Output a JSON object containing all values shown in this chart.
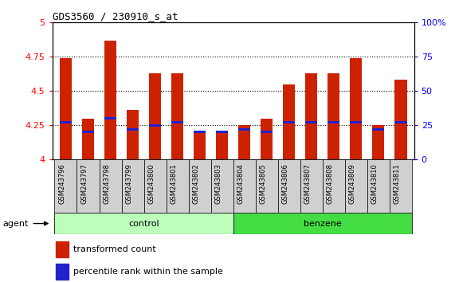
{
  "title": "GDS3560 / 230910_s_at",
  "samples": [
    "GSM243796",
    "GSM243797",
    "GSM243798",
    "GSM243799",
    "GSM243800",
    "GSM243801",
    "GSM243802",
    "GSM243803",
    "GSM243804",
    "GSM243805",
    "GSM243806",
    "GSM243807",
    "GSM243808",
    "GSM243809",
    "GSM243810",
    "GSM243811"
  ],
  "red_values": [
    4.74,
    4.3,
    4.87,
    4.36,
    4.63,
    4.63,
    4.2,
    4.2,
    4.25,
    4.3,
    4.55,
    4.63,
    4.63,
    4.74,
    4.25,
    4.58
  ],
  "blue_values": [
    4.27,
    4.2,
    4.3,
    4.22,
    4.25,
    4.27,
    4.2,
    4.2,
    4.22,
    4.2,
    4.27,
    4.27,
    4.27,
    4.27,
    4.22,
    4.27
  ],
  "ylim_left": [
    4.0,
    5.0
  ],
  "ylim_right": [
    0,
    100
  ],
  "yticks_left": [
    4.0,
    4.25,
    4.5,
    4.75,
    5.0
  ],
  "yticks_right": [
    0,
    25,
    50,
    75,
    100
  ],
  "ytick_labels_left": [
    "4",
    "4.25",
    "4.5",
    "4.75",
    "5"
  ],
  "ytick_labels_right": [
    "0",
    "25",
    "50",
    "75",
    "100%"
  ],
  "bar_color": "#cc2200",
  "blue_color": "#2222cc",
  "control_color": "#bbffbb",
  "benzene_color": "#44dd44",
  "agent_label": "agent",
  "legend_red": "transformed count",
  "legend_blue": "percentile rank within the sample",
  "bar_width": 0.55,
  "base": 4.0,
  "grid_lines": [
    4.25,
    4.5,
    4.75
  ],
  "sample_box_color": "#d0d0d0",
  "n_control": 8,
  "n_benzene": 8
}
